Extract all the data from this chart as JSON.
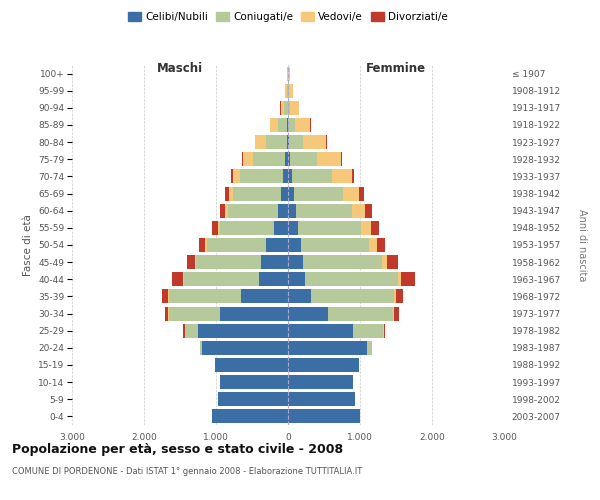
{
  "age_groups": [
    "0-4",
    "5-9",
    "10-14",
    "15-19",
    "20-24",
    "25-29",
    "30-34",
    "35-39",
    "40-44",
    "45-49",
    "50-54",
    "55-59",
    "60-64",
    "65-69",
    "70-74",
    "75-79",
    "80-84",
    "85-89",
    "90-94",
    "95-99",
    "100+"
  ],
  "birth_years": [
    "2003-2007",
    "1998-2002",
    "1993-1997",
    "1988-1992",
    "1983-1987",
    "1978-1982",
    "1973-1977",
    "1968-1972",
    "1963-1967",
    "1958-1962",
    "1953-1957",
    "1948-1952",
    "1943-1947",
    "1938-1942",
    "1933-1937",
    "1928-1932",
    "1923-1927",
    "1918-1922",
    "1913-1917",
    "1908-1912",
    "≤ 1907"
  ],
  "males": {
    "celibe": [
      1050,
      970,
      940,
      1010,
      1200,
      1250,
      950,
      650,
      400,
      380,
      310,
      200,
      140,
      100,
      70,
      40,
      15,
      8,
      4,
      2,
      1
    ],
    "coniugato": [
      0,
      0,
      0,
      5,
      20,
      180,
      700,
      1000,
      1050,
      900,
      820,
      750,
      700,
      660,
      600,
      450,
      290,
      130,
      50,
      15,
      4
    ],
    "vedovo": [
      0,
      0,
      0,
      0,
      0,
      5,
      10,
      12,
      15,
      18,
      22,
      28,
      40,
      55,
      90,
      130,
      150,
      110,
      50,
      18,
      5
    ],
    "divorziato": [
      0,
      0,
      0,
      0,
      5,
      18,
      55,
      90,
      140,
      110,
      90,
      80,
      70,
      55,
      35,
      18,
      8,
      4,
      2,
      1,
      0
    ]
  },
  "females": {
    "nubile": [
      1000,
      930,
      900,
      980,
      1100,
      900,
      560,
      320,
      230,
      210,
      180,
      140,
      105,
      80,
      55,
      30,
      12,
      6,
      2,
      1,
      1
    ],
    "coniugata": [
      0,
      0,
      0,
      10,
      60,
      420,
      900,
      1150,
      1300,
      1100,
      950,
      870,
      780,
      680,
      550,
      370,
      200,
      85,
      28,
      8,
      2
    ],
    "vedova": [
      0,
      0,
      0,
      0,
      5,
      8,
      18,
      25,
      45,
      70,
      100,
      140,
      185,
      230,
      280,
      330,
      320,
      220,
      120,
      55,
      18
    ],
    "divorziata": [
      0,
      0,
      0,
      0,
      5,
      25,
      70,
      105,
      190,
      150,
      120,
      110,
      90,
      65,
      38,
      18,
      7,
      3,
      1,
      0,
      0
    ]
  },
  "colors": {
    "celibe": "#3A6EA5",
    "coniugato": "#B5C99A",
    "vedovo": "#F5C87A",
    "divorziato": "#C0392B"
  },
  "xlim": 3000,
  "xlabel_left": "Maschi",
  "xlabel_right": "Femmine",
  "ylabel": "Fasce di età",
  "ylabel_right": "Anni di nascita",
  "title": "Popolazione per età, sesso e stato civile - 2008",
  "subtitle": "COMUNE DI PORDENONE - Dati ISTAT 1° gennaio 2008 - Elaborazione TUTTITALIA.IT",
  "legend_labels": [
    "Celibi/Nubili",
    "Coniugati/e",
    "Vedovi/e",
    "Divorziati/e"
  ],
  "legend_colors": [
    "#3A6EA5",
    "#B5C99A",
    "#F5C87A",
    "#C0392B"
  ],
  "bg_color": "#FFFFFF",
  "grid_color": "#CCCCCC"
}
